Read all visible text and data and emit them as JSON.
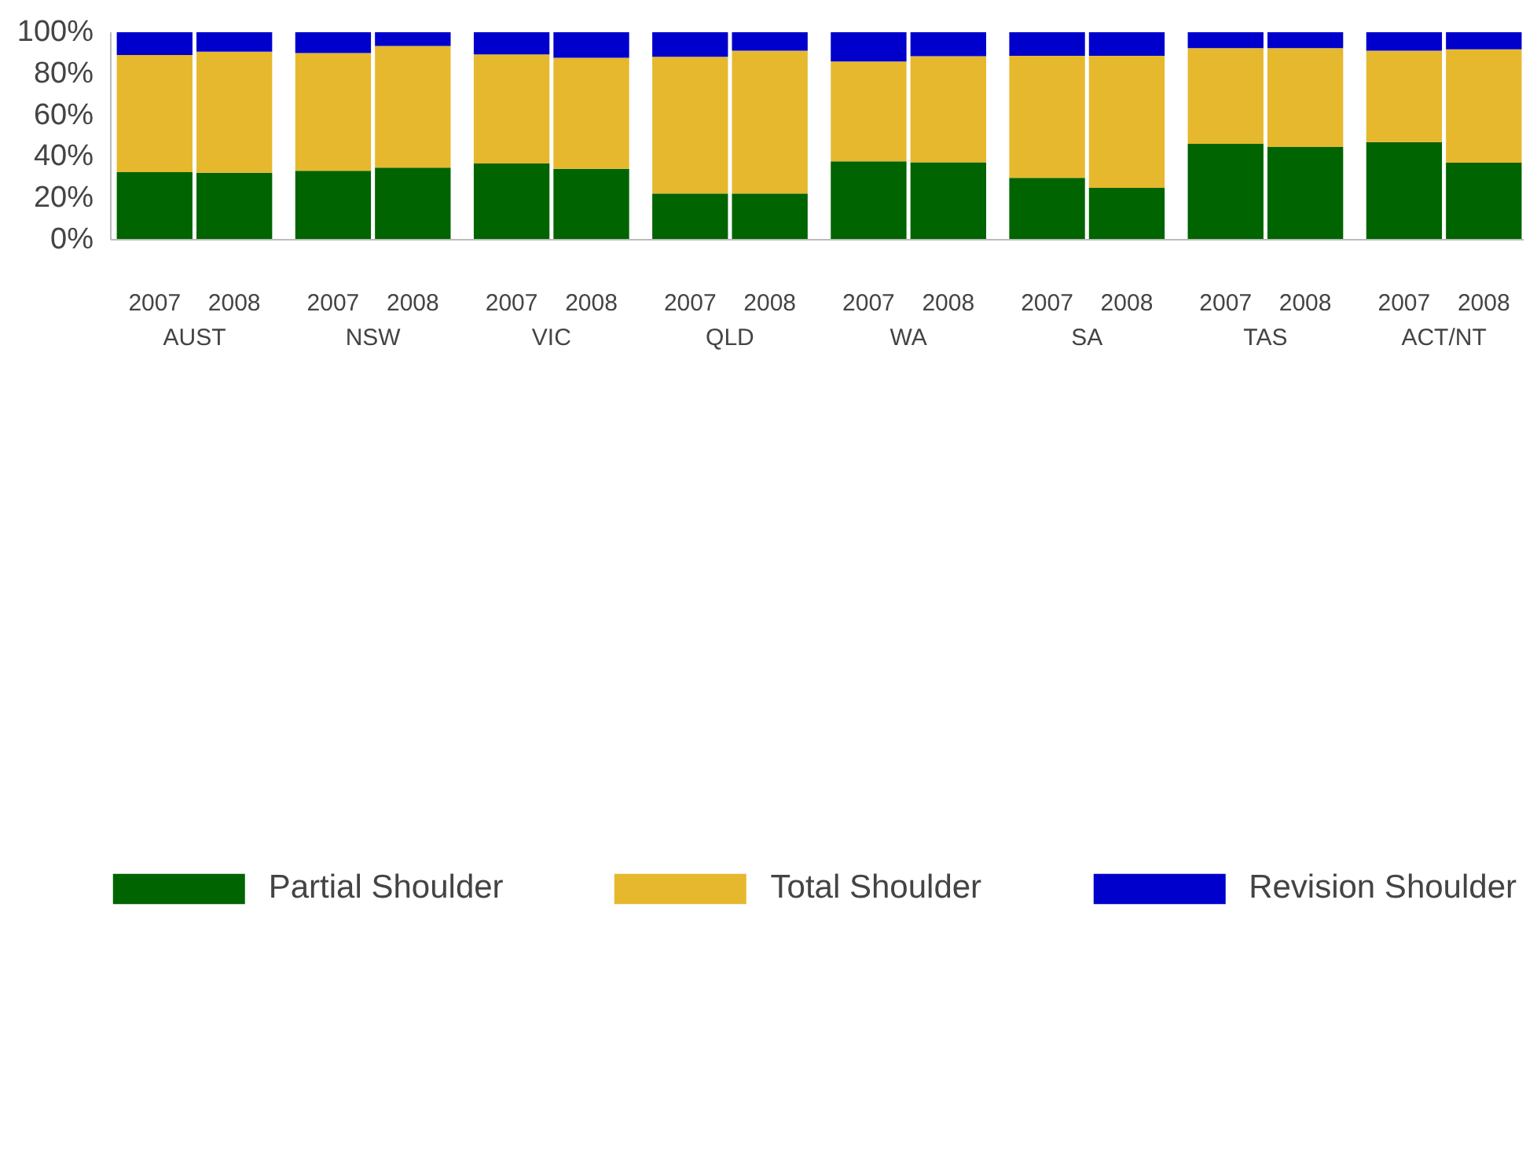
{
  "chart_data": {
    "type": "bar",
    "stacked": true,
    "categories": [
      "2007",
      "2008",
      "2007",
      "2008",
      "2007",
      "2008",
      "2007",
      "2008",
      "2007",
      "2008",
      "2007",
      "2008",
      "2007",
      "2008",
      "2007",
      "2008"
    ],
    "annotations": [
      "AUST",
      "NSW",
      "VIC",
      "QLD",
      "WA",
      "SA",
      "TAS",
      "ACT/NT"
    ],
    "series": [
      {
        "name": "Partial Shoulder",
        "color": "#006400",
        "values": [
          32.6,
          32.3,
          33.2,
          34.8,
          36.7,
          34.2,
          22.3,
          22.3,
          37.8,
          37.3,
          29.8,
          25.0,
          46.2,
          44.7,
          47.1,
          37.1
        ]
      },
      {
        "name": "Total Shoulder",
        "color": "#e6b82e",
        "values": [
          56.4,
          58.3,
          56.8,
          58.6,
          52.6,
          53.5,
          65.9,
          68.8,
          48.1,
          51.1,
          58.8,
          63.6,
          46.1,
          47.6,
          44.0,
          54.7
        ]
      },
      {
        "name": "Revision Shoulder",
        "color": "#0000cc",
        "values": [
          11.0,
          9.4,
          10.0,
          6.6,
          10.7,
          12.3,
          11.8,
          8.9,
          14.1,
          11.6,
          11.4,
          11.4,
          7.7,
          7.7,
          8.9,
          8.2
        ]
      }
    ],
    "ylim": [
      0,
      100
    ],
    "yticks": [
      {
        "value": 0,
        "label": "0%"
      },
      {
        "value": 20,
        "label": "20%"
      },
      {
        "value": 40,
        "label": "40%"
      },
      {
        "value": 60,
        "label": "60%"
      },
      {
        "value": 80,
        "label": "80%"
      },
      {
        "value": 100,
        "label": "100%"
      }
    ],
    "grid": false,
    "legend": "bottom"
  }
}
